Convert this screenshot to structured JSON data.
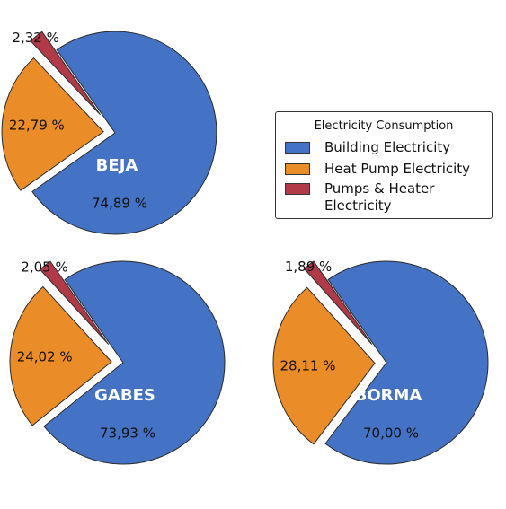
{
  "chart_data": {
    "type": "pie",
    "legend": {
      "title": "Electricity Consumption",
      "placement": "right",
      "entries": [
        {
          "label": "Building Electricity",
          "color": "#4472c4"
        },
        {
          "label": "Heat Pump Electricity",
          "color": "#ea8c27"
        },
        {
          "label": "Pumps & Heater Electricity",
          "color": "#b03a48"
        }
      ]
    },
    "pies": [
      {
        "name": "BEJA",
        "slices": [
          {
            "category": "Building Electricity",
            "value": 74.89,
            "label": "74,89 %"
          },
          {
            "category": "Heat Pump Electricity",
            "value": 22.79,
            "label": "22,79 %"
          },
          {
            "category": "Pumps & Heater Electricity",
            "value": 2.32,
            "label": "2,32 %"
          }
        ]
      },
      {
        "name": "GABES",
        "slices": [
          {
            "category": "Building Electricity",
            "value": 73.93,
            "label": "73,93 %"
          },
          {
            "category": "Heat Pump Electricity",
            "value": 24.02,
            "label": "24,02 %"
          },
          {
            "category": "Pumps & Heater Electricity",
            "value": 2.05,
            "label": "2,05 %"
          }
        ]
      },
      {
        "name": "BORMA",
        "slices": [
          {
            "category": "Building Electricity",
            "value": 70.0,
            "label": "70,00 %"
          },
          {
            "category": "Heat Pump Electricity",
            "value": 28.11,
            "label": "28,11 %"
          },
          {
            "category": "Pumps & Heater Electricity",
            "value": 1.89,
            "label": "1,89 %"
          }
        ]
      }
    ]
  }
}
